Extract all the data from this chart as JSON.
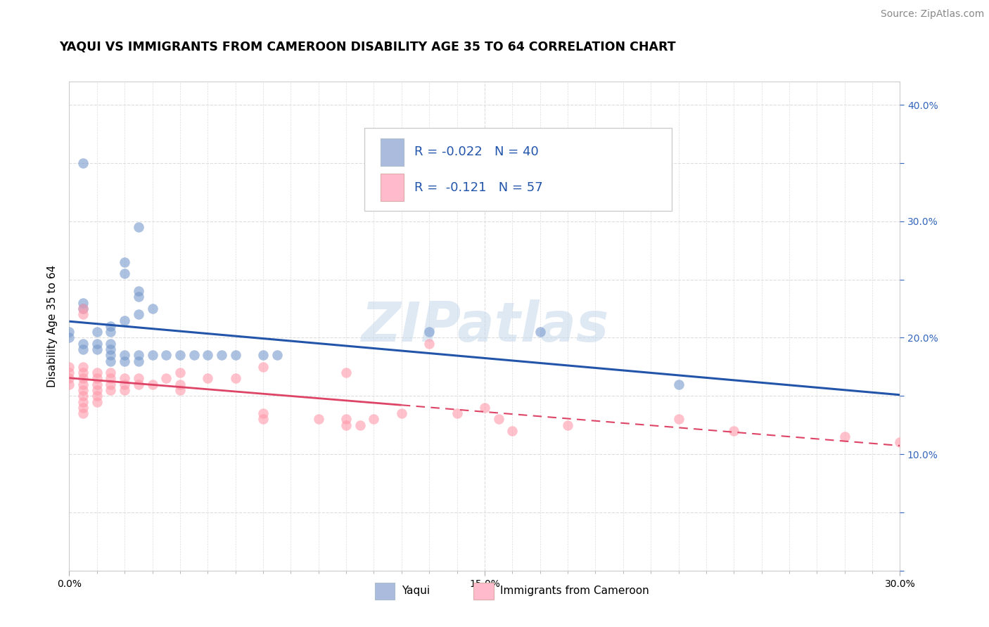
{
  "title": "YAQUI VS IMMIGRANTS FROM CAMEROON DISABILITY AGE 35 TO 64 CORRELATION CHART",
  "source_text": "Source: ZipAtlas.com",
  "ylabel": "Disability Age 35 to 64",
  "xlim": [
    0.0,
    0.3
  ],
  "ylim": [
    0.0,
    0.42
  ],
  "background_color": "#ffffff",
  "grid_color": "#dddddd",
  "watermark_text": "ZIPatlas",
  "legend_label1": "R = -0.022   N = 40",
  "legend_label2": "R =  -0.121   N = 57",
  "legend_color1": "#aabbdd",
  "legend_color2": "#ffbbcc",
  "yaqui_color": "#7799cc",
  "cameroon_color": "#ff99aa",
  "yaqui_scatter": [
    [
      0.005,
      0.35
    ],
    [
      0.025,
      0.295
    ],
    [
      0.02,
      0.265
    ],
    [
      0.02,
      0.255
    ],
    [
      0.025,
      0.24
    ],
    [
      0.025,
      0.235
    ],
    [
      0.03,
      0.225
    ],
    [
      0.025,
      0.22
    ],
    [
      0.02,
      0.215
    ],
    [
      0.015,
      0.21
    ],
    [
      0.015,
      0.205
    ],
    [
      0.01,
      0.205
    ],
    [
      0.005,
      0.23
    ],
    [
      0.005,
      0.225
    ],
    [
      0.0,
      0.205
    ],
    [
      0.0,
      0.2
    ],
    [
      0.005,
      0.195
    ],
    [
      0.005,
      0.19
    ],
    [
      0.01,
      0.195
    ],
    [
      0.01,
      0.19
    ],
    [
      0.015,
      0.195
    ],
    [
      0.015,
      0.19
    ],
    [
      0.015,
      0.185
    ],
    [
      0.015,
      0.18
    ],
    [
      0.02,
      0.185
    ],
    [
      0.02,
      0.18
    ],
    [
      0.025,
      0.185
    ],
    [
      0.025,
      0.18
    ],
    [
      0.03,
      0.185
    ],
    [
      0.035,
      0.185
    ],
    [
      0.04,
      0.185
    ],
    [
      0.045,
      0.185
    ],
    [
      0.05,
      0.185
    ],
    [
      0.055,
      0.185
    ],
    [
      0.06,
      0.185
    ],
    [
      0.07,
      0.185
    ],
    [
      0.075,
      0.185
    ],
    [
      0.13,
      0.205
    ],
    [
      0.17,
      0.205
    ],
    [
      0.22,
      0.16
    ]
  ],
  "cameroon_scatter": [
    [
      0.0,
      0.175
    ],
    [
      0.0,
      0.17
    ],
    [
      0.0,
      0.165
    ],
    [
      0.0,
      0.16
    ],
    [
      0.005,
      0.175
    ],
    [
      0.005,
      0.17
    ],
    [
      0.005,
      0.165
    ],
    [
      0.005,
      0.16
    ],
    [
      0.005,
      0.155
    ],
    [
      0.005,
      0.15
    ],
    [
      0.005,
      0.145
    ],
    [
      0.005,
      0.14
    ],
    [
      0.005,
      0.135
    ],
    [
      0.005,
      0.22
    ],
    [
      0.005,
      0.225
    ],
    [
      0.01,
      0.17
    ],
    [
      0.01,
      0.165
    ],
    [
      0.01,
      0.16
    ],
    [
      0.01,
      0.155
    ],
    [
      0.01,
      0.15
    ],
    [
      0.01,
      0.145
    ],
    [
      0.015,
      0.17
    ],
    [
      0.015,
      0.165
    ],
    [
      0.015,
      0.16
    ],
    [
      0.015,
      0.155
    ],
    [
      0.02,
      0.165
    ],
    [
      0.02,
      0.16
    ],
    [
      0.02,
      0.155
    ],
    [
      0.025,
      0.165
    ],
    [
      0.025,
      0.16
    ],
    [
      0.03,
      0.16
    ],
    [
      0.035,
      0.165
    ],
    [
      0.04,
      0.16
    ],
    [
      0.04,
      0.155
    ],
    [
      0.04,
      0.17
    ],
    [
      0.05,
      0.165
    ],
    [
      0.06,
      0.165
    ],
    [
      0.07,
      0.175
    ],
    [
      0.07,
      0.135
    ],
    [
      0.07,
      0.13
    ],
    [
      0.09,
      0.13
    ],
    [
      0.1,
      0.13
    ],
    [
      0.1,
      0.125
    ],
    [
      0.1,
      0.17
    ],
    [
      0.105,
      0.125
    ],
    [
      0.11,
      0.13
    ],
    [
      0.12,
      0.135
    ],
    [
      0.13,
      0.195
    ],
    [
      0.14,
      0.135
    ],
    [
      0.15,
      0.14
    ],
    [
      0.155,
      0.13
    ],
    [
      0.16,
      0.12
    ],
    [
      0.18,
      0.125
    ],
    [
      0.22,
      0.13
    ],
    [
      0.24,
      0.12
    ],
    [
      0.28,
      0.115
    ],
    [
      0.3,
      0.11
    ]
  ],
  "yaqui_line_color": "#2255aa",
  "cameroon_line_color": "#dd4466",
  "title_fontsize": 12.5,
  "axis_label_fontsize": 11,
  "tick_fontsize": 10,
  "legend_fontsize": 13,
  "source_fontsize": 10
}
